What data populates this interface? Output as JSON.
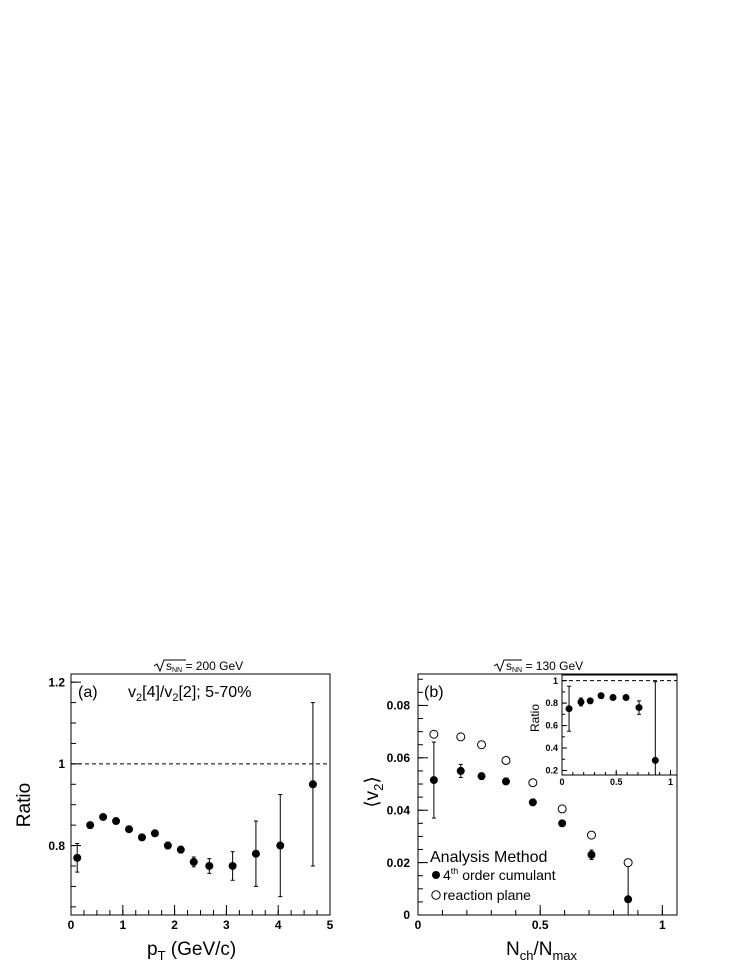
{
  "chart_data": [
    {
      "panel": "a",
      "type": "scatter",
      "top_label": {
        "prefix": "s",
        "sub": "NN",
        "value": " = 200 GeV"
      },
      "panel_label": "(a)",
      "annotation": {
        "v": "v",
        "s1": "2",
        "mid": "[4]/v",
        "s2": "2",
        "tail": "[2]; 5-70%"
      },
      "xlabel": {
        "main": "p",
        "sub": "T",
        "tail": " (GeV/c)"
      },
      "ylabel": "Ratio",
      "xlim": [
        0,
        5
      ],
      "ylim": [
        0.63,
        1.22
      ],
      "xticks": [
        "0",
        "1",
        "2",
        "3",
        "4",
        "5"
      ],
      "yticks": [
        "0.8",
        "1",
        "1.2"
      ],
      "reference_line": 1.0,
      "series": [
        {
          "marker": "filled-circle",
          "points": [
            {
              "x": 0.12,
              "y": 0.77,
              "err": 0.035
            },
            {
              "x": 0.37,
              "y": 0.85,
              "err": 0.006
            },
            {
              "x": 0.62,
              "y": 0.87,
              "err": 0.006
            },
            {
              "x": 0.87,
              "y": 0.86,
              "err": 0.006
            },
            {
              "x": 1.12,
              "y": 0.84,
              "err": 0.006
            },
            {
              "x": 1.37,
              "y": 0.82,
              "err": 0.006
            },
            {
              "x": 1.62,
              "y": 0.83,
              "err": 0.006
            },
            {
              "x": 1.87,
              "y": 0.8,
              "err": 0.008
            },
            {
              "x": 2.12,
              "y": 0.79,
              "err": 0.008
            },
            {
              "x": 2.37,
              "y": 0.76,
              "err": 0.012
            },
            {
              "x": 2.67,
              "y": 0.75,
              "err": 0.018
            },
            {
              "x": 3.12,
              "y": 0.75,
              "err": 0.035
            },
            {
              "x": 3.57,
              "y": 0.78,
              "err": 0.08
            },
            {
              "x": 4.04,
              "y": 0.8,
              "err": 0.125
            },
            {
              "x": 4.67,
              "y": 0.95,
              "err": 0.2
            }
          ]
        }
      ]
    },
    {
      "panel": "b",
      "type": "scatter",
      "top_label": {
        "prefix": "s",
        "sub": "NN",
        "value": " = 130 GeV"
      },
      "panel_label": "(b)",
      "xlabel": {
        "main": "N",
        "sub1": "ch",
        "mid": "/N",
        "sub2": "max"
      },
      "ylabel": {
        "open": "⟨v",
        "sub": "2",
        "close": "⟩"
      },
      "xlim": [
        0,
        1.06
      ],
      "ylim": [
        0,
        0.092
      ],
      "xticks": [
        "0",
        "0.5",
        "1"
      ],
      "yticks": [
        "0",
        "0.02",
        "0.04",
        "0.06",
        "0.08"
      ],
      "legend": {
        "title": "Analysis Method",
        "items": [
          {
            "marker": "filled-circle",
            "main": "4",
            "sup": "th",
            "tail": " order cumulant"
          },
          {
            "marker": "open-circle",
            "main": "reaction plane"
          }
        ]
      },
      "series": [
        {
          "name": "4th order cumulant",
          "marker": "filled-circle",
          "points": [
            {
              "x": 0.065,
              "y": 0.0515,
              "err": 0.0145
            },
            {
              "x": 0.175,
              "y": 0.055,
              "err": 0.0025
            },
            {
              "x": 0.26,
              "y": 0.053,
              "err": 0.0012
            },
            {
              "x": 0.36,
              "y": 0.051,
              "err": 0.0012
            },
            {
              "x": 0.47,
              "y": 0.043,
              "err": 0.0012
            },
            {
              "x": 0.59,
              "y": 0.035,
              "err": 0.001
            },
            {
              "x": 0.71,
              "y": 0.023,
              "err": 0.0018
            },
            {
              "x": 0.86,
              "y": 0.006,
              "err": 0.014
            }
          ]
        },
        {
          "name": "reaction plane",
          "marker": "open-circle",
          "points": [
            {
              "x": 0.065,
              "y": 0.069
            },
            {
              "x": 0.175,
              "y": 0.068
            },
            {
              "x": 0.26,
              "y": 0.065
            },
            {
              "x": 0.36,
              "y": 0.059
            },
            {
              "x": 0.47,
              "y": 0.0505
            },
            {
              "x": 0.59,
              "y": 0.0405
            },
            {
              "x": 0.71,
              "y": 0.0305
            },
            {
              "x": 0.86,
              "y": 0.02
            }
          ]
        }
      ],
      "inset": {
        "type": "scatter",
        "ylabel": "Ratio",
        "xlim": [
          0,
          1.06
        ],
        "ylim": [
          0.16,
          1.05
        ],
        "xticks": [
          "0",
          "0.5",
          "1"
        ],
        "yticks": [
          "0.2",
          "0.4",
          "0.6",
          "0.8",
          "1"
        ],
        "reference_line": 1.0,
        "series": [
          {
            "marker": "filled-circle",
            "points": [
              {
                "x": 0.065,
                "y": 0.75,
                "err": 0.2
              },
              {
                "x": 0.175,
                "y": 0.81,
                "err": 0.035
              },
              {
                "x": 0.26,
                "y": 0.82,
                "err": 0.02
              },
              {
                "x": 0.36,
                "y": 0.865,
                "err": 0.02
              },
              {
                "x": 0.47,
                "y": 0.85,
                "err": 0.02
              },
              {
                "x": 0.59,
                "y": 0.85,
                "err": 0.02
              },
              {
                "x": 0.71,
                "y": 0.76,
                "err": 0.06
              },
              {
                "x": 0.86,
                "y": 0.29,
                "err": 0.7
              }
            ]
          }
        ]
      }
    }
  ]
}
